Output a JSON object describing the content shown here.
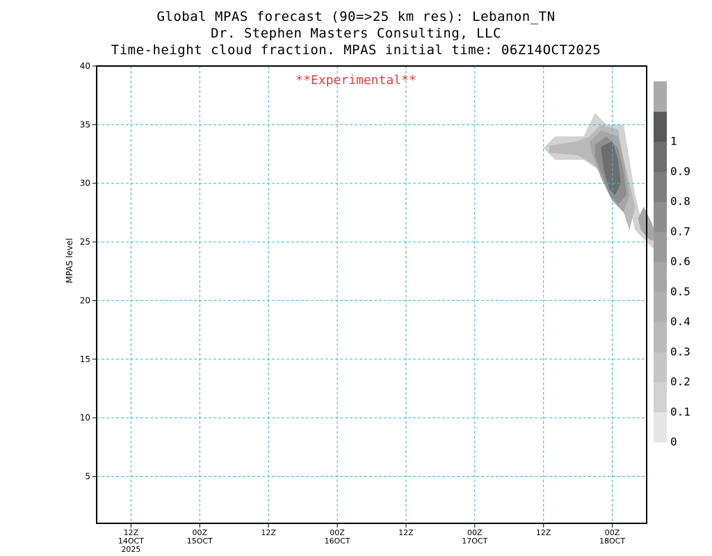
{
  "header": {
    "line1": "Global MPAS forecast (90=>25 km res): Lebanon_TN",
    "line2": "Dr. Stephen Masters Consulting, LLC",
    "line3": "Time-height cloud fraction.   MPAS initial time: 06Z14OCT2025"
  },
  "colors": {
    "grid": "#33bbcc",
    "experimental": "#e04040",
    "frame": "#000000"
  },
  "chart_data": {
    "type": "heatmap",
    "title": "Time-height cloud fraction.",
    "ylabel": "MPAS level",
    "xlabel": "",
    "annotation": "**Experimental**",
    "ylim": [
      1,
      40
    ],
    "yticks": [
      5,
      10,
      15,
      20,
      25,
      30,
      35,
      40
    ],
    "xlim_hours": [
      -6,
      90
    ],
    "x_ticks": [
      {
        "hour": 0,
        "line1": "12Z",
        "line2": "14OCT",
        "line3": "2025"
      },
      {
        "hour": 12,
        "line1": "00Z",
        "line2": "15OCT",
        "line3": ""
      },
      {
        "hour": 24,
        "line1": "12Z",
        "line2": "",
        "line3": ""
      },
      {
        "hour": 36,
        "line1": "00Z",
        "line2": "16OCT",
        "line3": ""
      },
      {
        "hour": 48,
        "line1": "12Z",
        "line2": "",
        "line3": ""
      },
      {
        "hour": 60,
        "line1": "00Z",
        "line2": "17OCT",
        "line3": ""
      },
      {
        "hour": 72,
        "line1": "12Z",
        "line2": "",
        "line3": ""
      },
      {
        "hour": 84,
        "line1": "00Z",
        "line2": "18OCT",
        "line3": ""
      }
    ],
    "colorbar": {
      "labels": [
        "0",
        "0.1",
        "0.2",
        "0.3",
        "0.4",
        "0.5",
        "0.6",
        "0.7",
        "0.8",
        "0.9",
        "1"
      ],
      "colors": [
        "#e6e6e6",
        "#d2d2d2",
        "#c6c6c6",
        "#bababa",
        "#b0b0b0",
        "#a6a6a6",
        "#9a9a9a",
        "#8e8e8e",
        "#7e7e7e",
        "#6e6e6e",
        "#5a5a5a",
        "#aaaaaa"
      ]
    },
    "cloud_regions": [
      {
        "level": 0.15,
        "points": [
          [
            72,
            33
          ],
          [
            74,
            34
          ],
          [
            79,
            34
          ],
          [
            81,
            36
          ],
          [
            83,
            35
          ],
          [
            86,
            35
          ],
          [
            87,
            32
          ],
          [
            88,
            29
          ],
          [
            89,
            27
          ],
          [
            91,
            26
          ],
          [
            92,
            24
          ],
          [
            90,
            25
          ],
          [
            88,
            26
          ],
          [
            87,
            28
          ],
          [
            85,
            29
          ],
          [
            84,
            30
          ],
          [
            82,
            31
          ],
          [
            79,
            32
          ],
          [
            74,
            32
          ]
        ]
      },
      {
        "level": 0.35,
        "points": [
          [
            73,
            33.2
          ],
          [
            78,
            33.6
          ],
          [
            80,
            34
          ],
          [
            82,
            35
          ],
          [
            85,
            34.6
          ],
          [
            86,
            32
          ],
          [
            87,
            30
          ],
          [
            88,
            28
          ],
          [
            87,
            26
          ],
          [
            86,
            27.5
          ],
          [
            84,
            28.5
          ],
          [
            83,
            30
          ],
          [
            81,
            31.5
          ],
          [
            78,
            32.4
          ],
          [
            73,
            32.6
          ]
        ]
      },
      {
        "level": 0.55,
        "points": [
          [
            80,
            33.5
          ],
          [
            82,
            34.5
          ],
          [
            85,
            34
          ],
          [
            86,
            32
          ],
          [
            87,
            29
          ],
          [
            86,
            27.5
          ],
          [
            84,
            28.5
          ],
          [
            82,
            30.5
          ],
          [
            80.5,
            32.5
          ]
        ]
      },
      {
        "level": 0.75,
        "points": [
          [
            81,
            33.3
          ],
          [
            83,
            34
          ],
          [
            85,
            33
          ],
          [
            86,
            31
          ],
          [
            86.5,
            29
          ],
          [
            85,
            28.2
          ],
          [
            83.5,
            29
          ],
          [
            82,
            31
          ],
          [
            81,
            32.3
          ]
        ]
      },
      {
        "level": 0.95,
        "points": [
          [
            82,
            33.1
          ],
          [
            84,
            33.6
          ],
          [
            85,
            32
          ],
          [
            85.5,
            30
          ],
          [
            84.5,
            29
          ],
          [
            83.5,
            29.5
          ],
          [
            82.5,
            31.2
          ]
        ]
      },
      {
        "level": 0.5,
        "points": [
          [
            88.5,
            27
          ],
          [
            89.5,
            28
          ],
          [
            91,
            26.5
          ],
          [
            92,
            25
          ],
          [
            90.5,
            25.2
          ],
          [
            89,
            26
          ]
        ]
      }
    ]
  }
}
